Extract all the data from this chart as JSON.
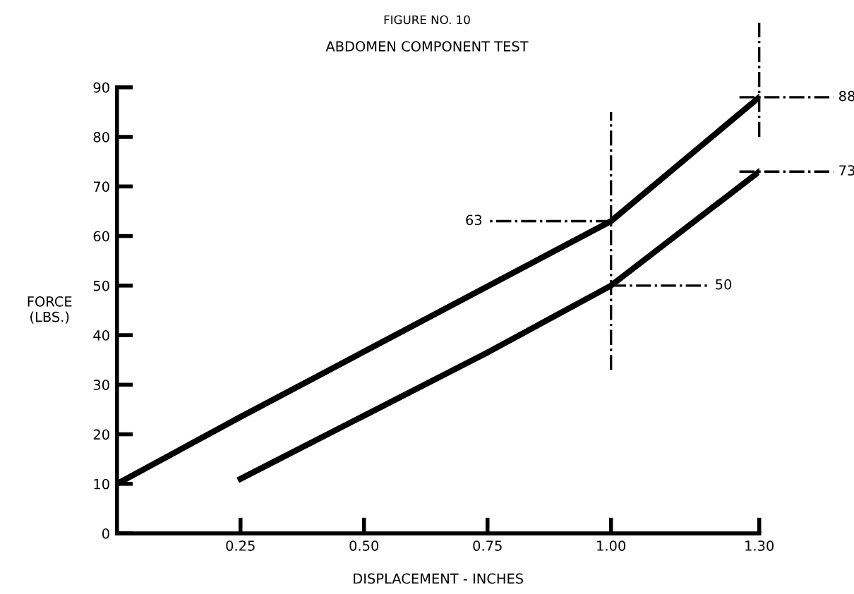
{
  "chart_data": {
    "type": "line",
    "title": "FIGURE NO. 10",
    "subtitle": "ABDOMEN COMPONENT TEST",
    "xlabel": "DISPLACEMENT - INCHES",
    "ylabel": "FORCE\n(LBS.)",
    "series": [
      {
        "color": "#000000",
        "x": [
          0,
          0.25,
          1.0,
          1.3
        ],
        "values": [
          10,
          23.5,
          63,
          88
        ]
      },
      {
        "color": "#000000",
        "x": [
          0.25,
          0.75,
          1.0,
          1.3
        ],
        "values": [
          11,
          36.5,
          50,
          73
        ]
      }
    ],
    "xlim": [
      0,
      1.3
    ],
    "xticks": [
      {
        "value": 0.25,
        "label": "0.25"
      },
      {
        "value": 0.5,
        "label": "0.50"
      },
      {
        "value": 0.75,
        "label": "0.75"
      },
      {
        "value": 1.0,
        "label": "1.00"
      },
      {
        "value": 1.3,
        "label": "1.30"
      }
    ],
    "ylim": [
      0,
      90
    ],
    "yticks": [
      0,
      10,
      20,
      30,
      40,
      50,
      60,
      70,
      80,
      90
    ],
    "ref_lines": [
      {
        "axis": "x",
        "value": 1.0,
        "color": "#000000",
        "line_style": "dashdot"
      },
      {
        "axis": "x",
        "value": 1.3,
        "color": "#000000",
        "line_style": "dashdot"
      },
      {
        "axis": "y",
        "value": 63,
        "label": "63",
        "color": "#000000",
        "line_style": "dashdot"
      },
      {
        "axis": "y",
        "value": 50,
        "label": "50",
        "color": "#000000",
        "line_style": "dashdot"
      },
      {
        "axis": "y",
        "value": 88,
        "label": "88",
        "color": "#000000",
        "line_style": "dashdot"
      },
      {
        "axis": "y",
        "value": 73,
        "label": "73",
        "color": "#000000",
        "line_style": "dashdot"
      }
    ],
    "grid": false,
    "legend": false,
    "marker": "none",
    "line_style": "solid"
  }
}
